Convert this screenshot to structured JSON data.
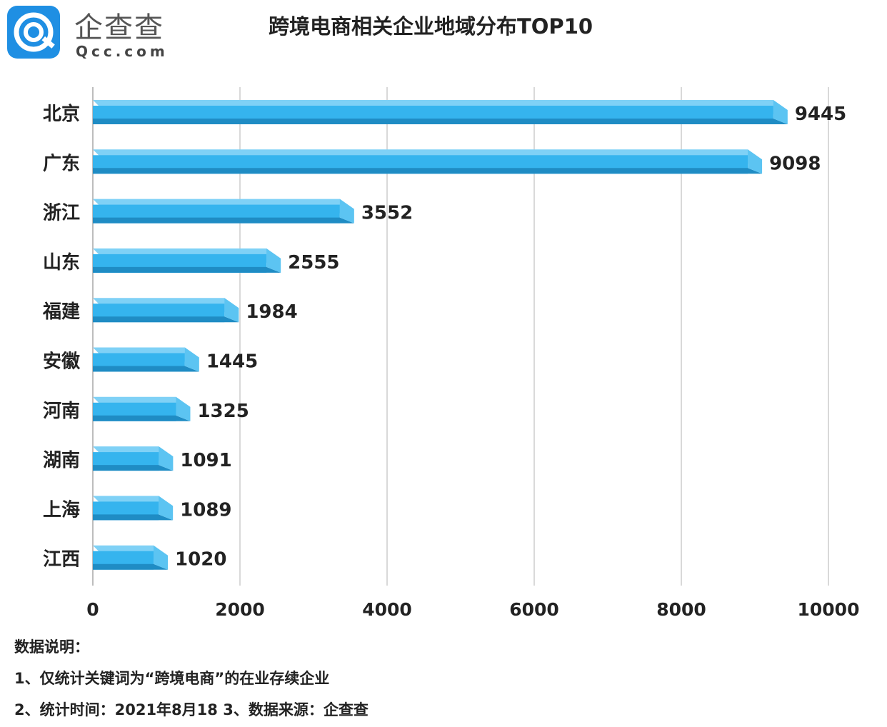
{
  "logo": {
    "cn": "企查查",
    "en": "Qcc.com"
  },
  "chart_data": {
    "type": "bar",
    "orientation": "horizontal",
    "title": "跨境电商相关企业地域分布TOP10",
    "categories": [
      "北京",
      "广东",
      "浙江",
      "山东",
      "福建",
      "安徽",
      "河南",
      "湖南",
      "上海",
      "江西"
    ],
    "values": [
      9445,
      9098,
      3552,
      2555,
      1984,
      1445,
      1325,
      1091,
      1089,
      1020
    ],
    "xlim": [
      0,
      10000
    ],
    "x_ticks": [
      0,
      2000,
      4000,
      6000,
      8000,
      10000
    ],
    "grid": true,
    "bar_color": "#35b4ee",
    "bar_shade_color": "#1f8cc4",
    "bar_top_color": "#7fd1f6"
  },
  "notes": {
    "heading": "数据说明：",
    "line1": "1、仅统计关键词为“跨境电商”的在业存续企业",
    "line2": "2、统计时间：2021年8月18   3、数据来源：企查查"
  }
}
